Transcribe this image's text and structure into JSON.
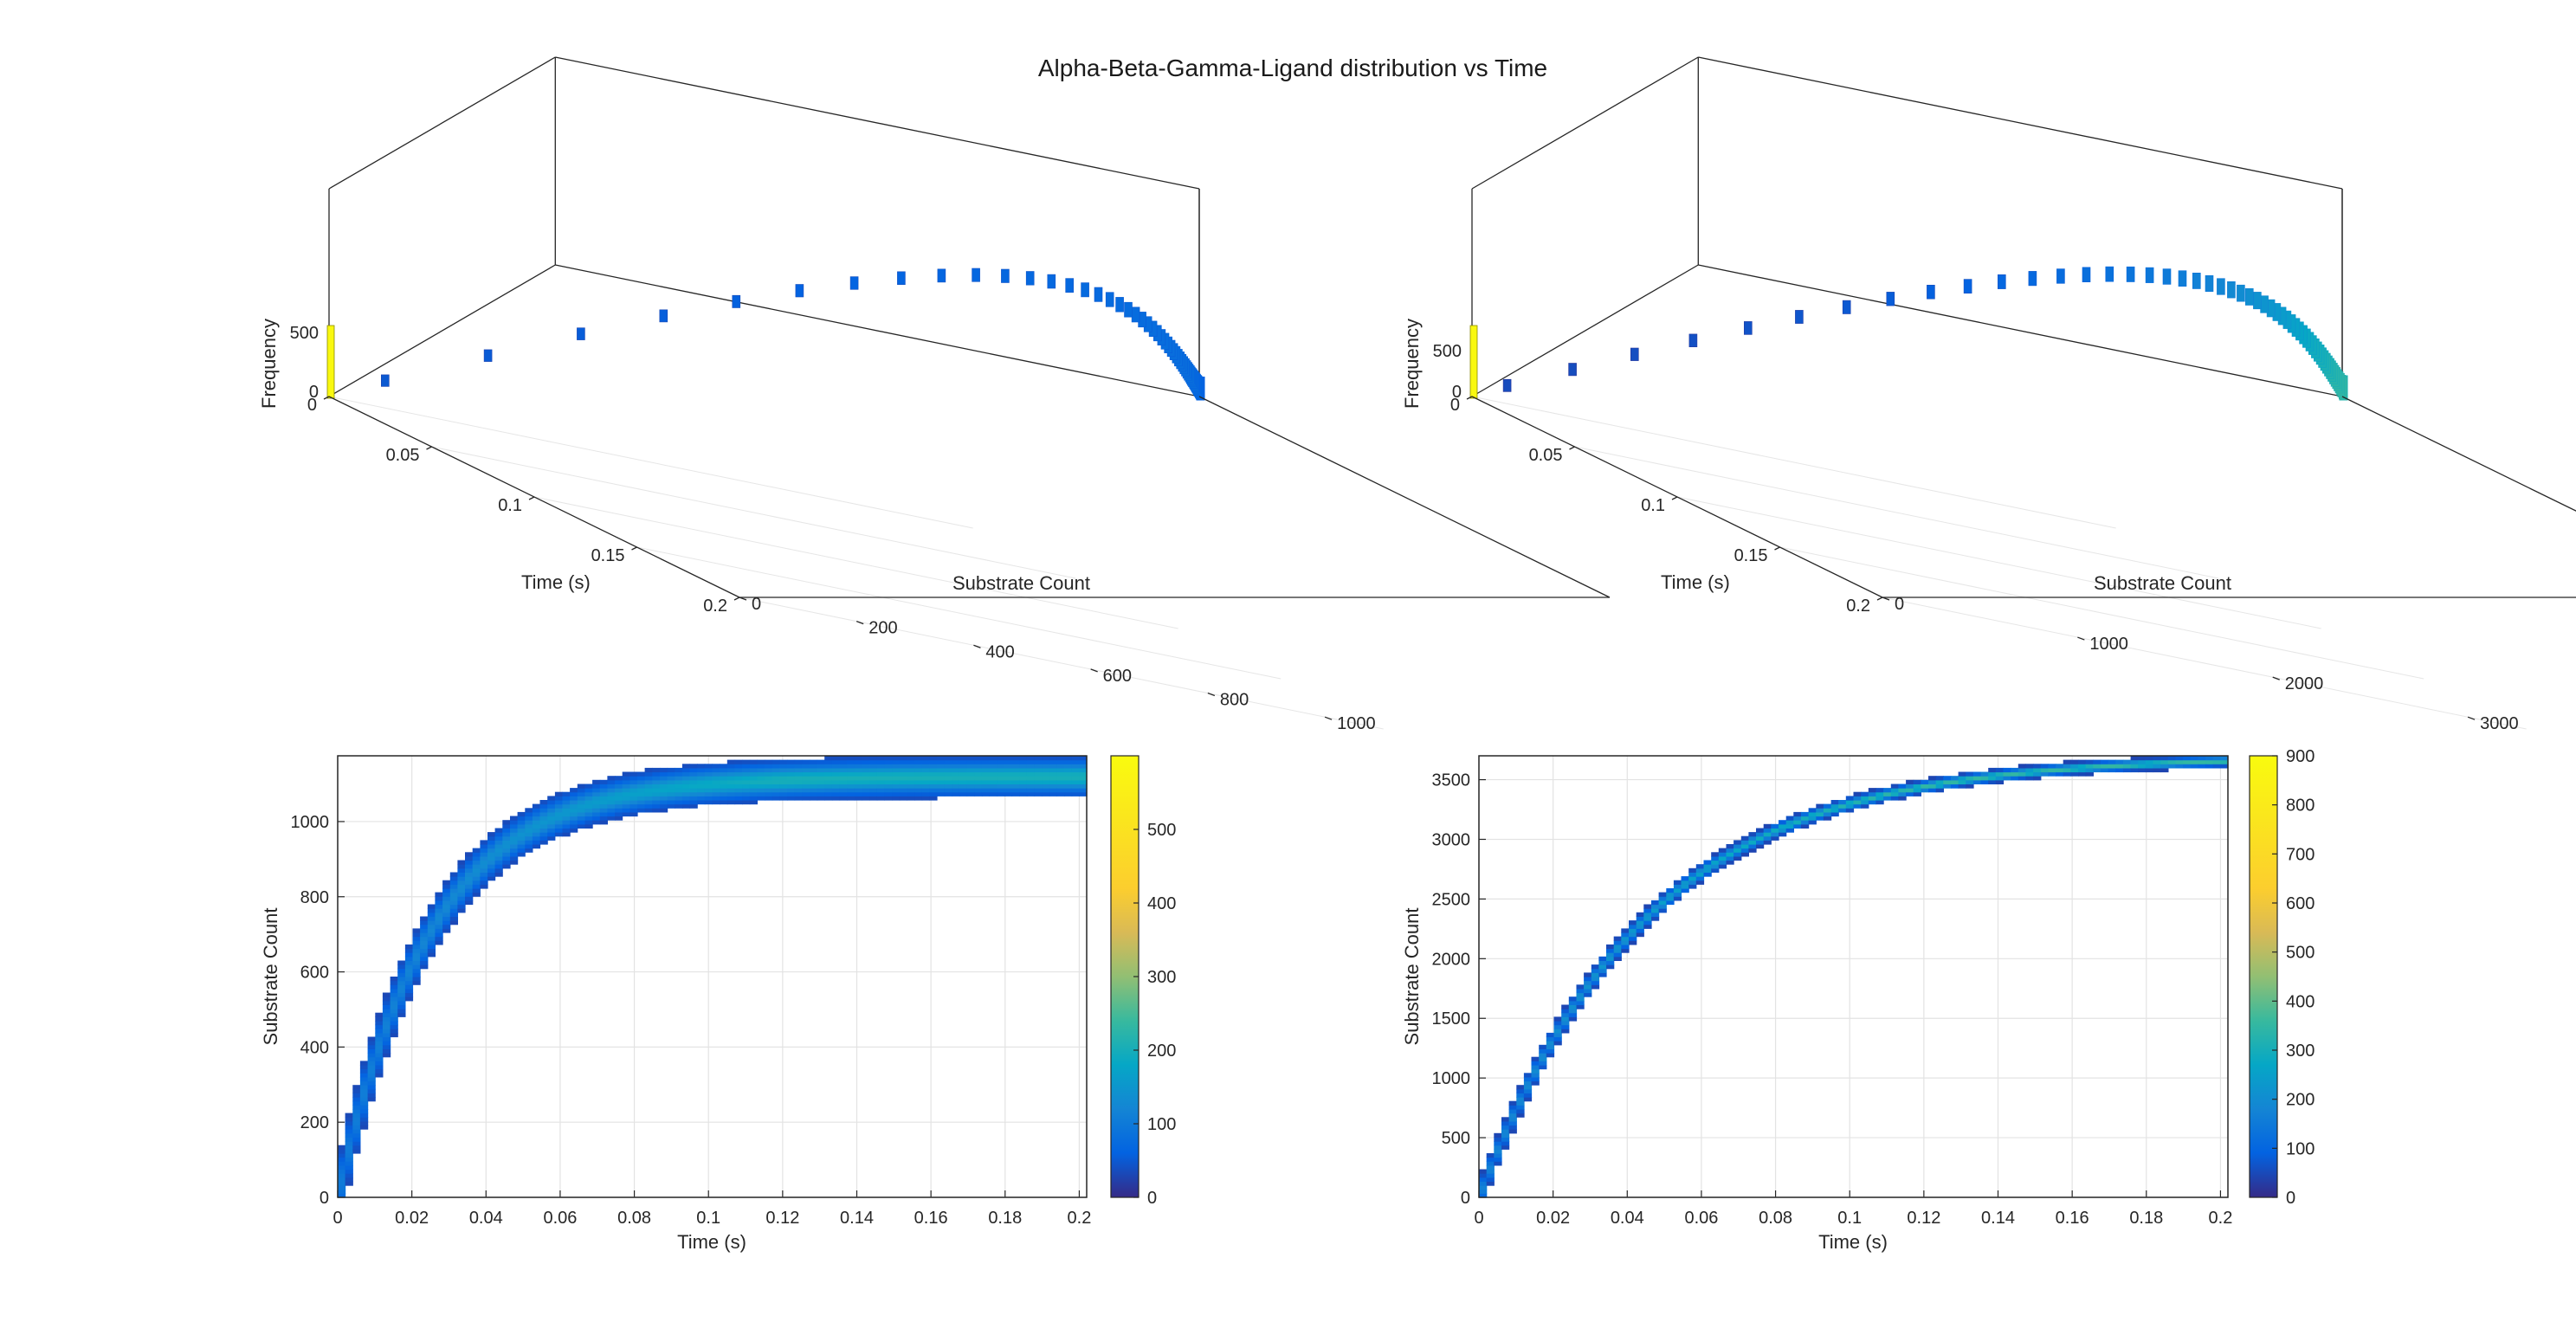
{
  "figure": {
    "title": "Alpha-Beta-Gamma-Ligand distribution vs Time"
  },
  "chart_data": [
    {
      "type": "surface3d",
      "panel": "top-left",
      "xlabel": "Time (s)",
      "ylabel": "Substrate Count",
      "zlabel": "Frequency",
      "x_ticks": [
        "0",
        "0.05",
        "0.1",
        "0.15",
        "0.2"
      ],
      "y_ticks": [
        "0",
        "200",
        "400",
        "600",
        "800",
        "1000"
      ],
      "z_ticks": [
        "0",
        "500"
      ],
      "xlim": [
        0,
        0.2
      ],
      "ylim": [
        0,
        1100
      ],
      "zlim": [
        0,
        600
      ],
      "curve": {
        "y_max": 1120,
        "tau": 0.025,
        "width": 80
      },
      "peak_frequency": 560
    },
    {
      "type": "surface3d",
      "panel": "top-right",
      "xlabel": "Time (s)",
      "ylabel": "Substrate Count",
      "zlabel": "Frequency",
      "x_ticks": [
        "0",
        "0.05",
        "0.1",
        "0.15",
        "0.2"
      ],
      "y_ticks": [
        "0",
        "1000",
        "2000",
        "3000"
      ],
      "z_ticks": [
        "0",
        "500"
      ],
      "xlim": [
        0,
        0.2
      ],
      "ylim": [
        0,
        3300
      ],
      "zlim": [
        0,
        900
      ],
      "curve": {
        "y_max": 3700,
        "tau": 0.045,
        "width": 60
      },
      "peak_frequency": 900
    },
    {
      "type": "heatmap",
      "panel": "bottom-left",
      "xlabel": "Time (s)",
      "ylabel": "Substrate Count",
      "x_ticks": [
        0,
        0.02,
        0.04,
        0.06,
        0.08,
        0.1,
        0.12,
        0.14,
        0.16,
        0.18,
        0.2
      ],
      "y_ticks": [
        0,
        200,
        400,
        600,
        800,
        1000
      ],
      "xlim": [
        0,
        0.202
      ],
      "ylim": [
        0,
        1175
      ],
      "colorbar_ticks": [
        0,
        100,
        200,
        300,
        400,
        500
      ],
      "colorbar_max": 600,
      "curve": {
        "y_max": 1120,
        "tau": 0.025,
        "band_halfwidth": 50
      },
      "grid": true
    },
    {
      "type": "heatmap",
      "panel": "bottom-right",
      "xlabel": "Time (s)",
      "ylabel": "Substrate Count",
      "x_ticks": [
        0,
        0.02,
        0.04,
        0.06,
        0.08,
        0.1,
        0.12,
        0.14,
        0.16,
        0.18,
        0.2
      ],
      "y_ticks": [
        0,
        500,
        1000,
        1500,
        2000,
        2500,
        3000,
        3500
      ],
      "xlim": [
        0,
        0.202
      ],
      "ylim": [
        0,
        3700
      ],
      "colorbar_ticks": [
        0,
        100,
        200,
        300,
        400,
        500,
        600,
        700,
        800,
        900
      ],
      "colorbar_max": 900,
      "curve": {
        "y_max": 3700,
        "tau": 0.045,
        "band_halfwidth": 40
      },
      "grid": true
    }
  ]
}
